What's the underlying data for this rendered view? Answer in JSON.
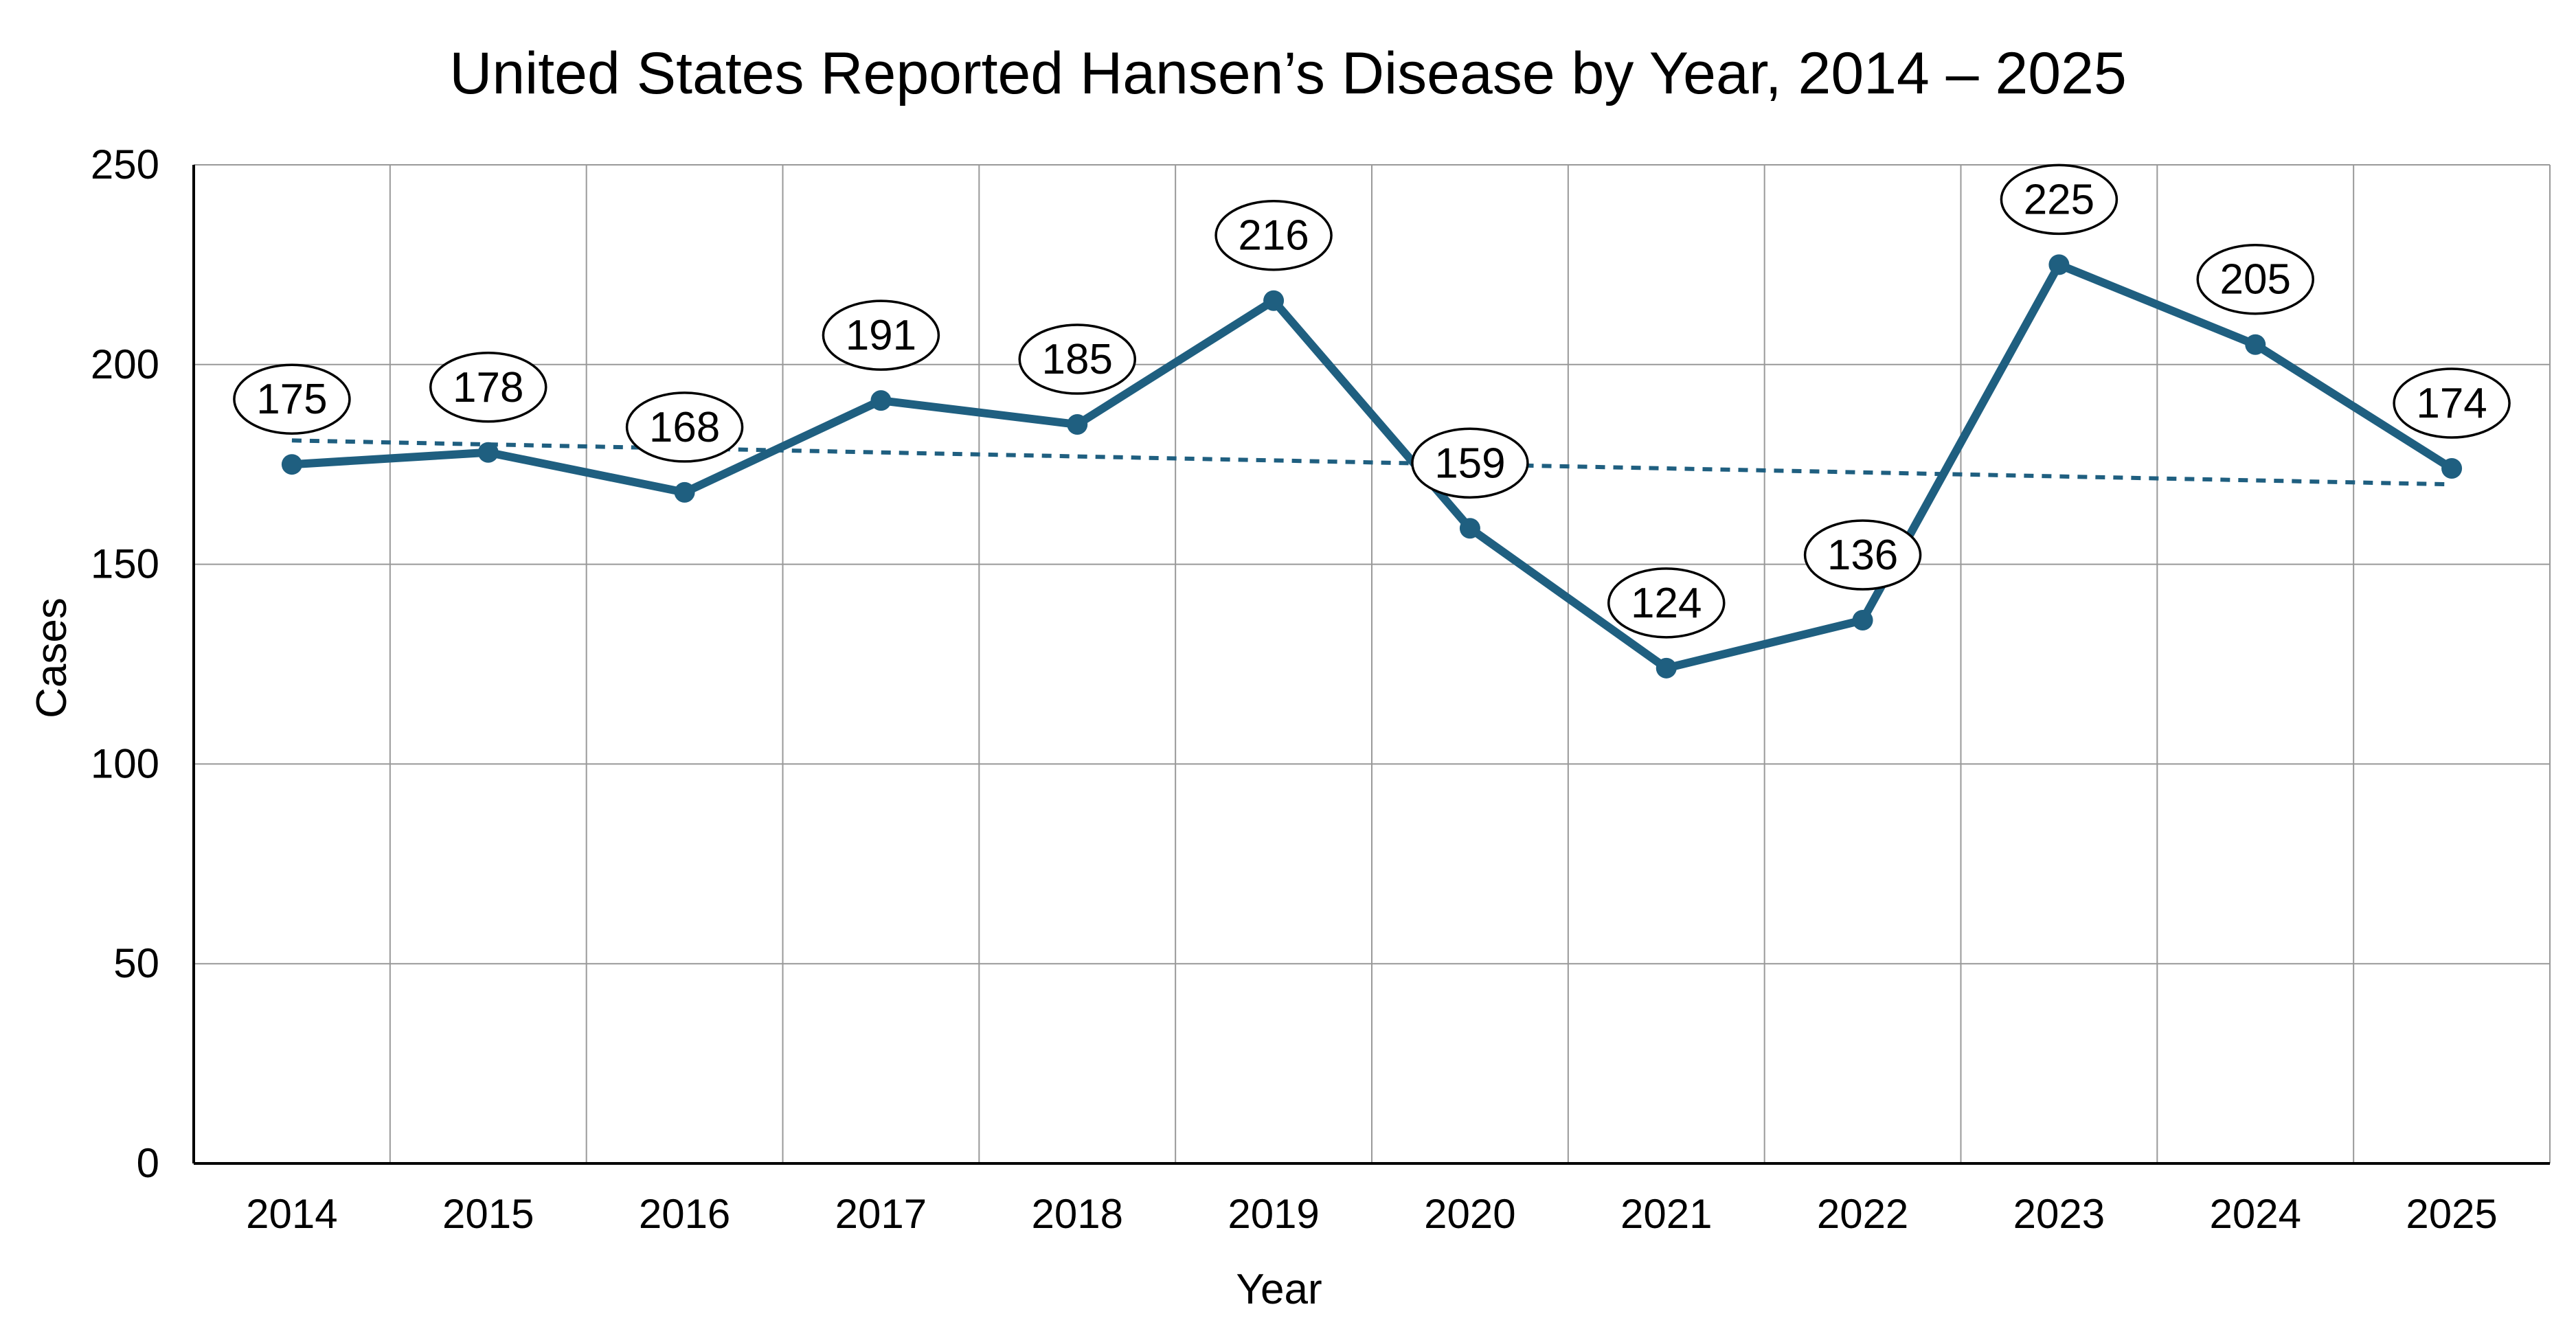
{
  "chart_data": {
    "type": "line",
    "title": "United States Reported Hansen’s Disease by Year, 2014 – 2025",
    "xlabel": "Year",
    "ylabel": "Cases",
    "x": [
      "2014",
      "2015",
      "2016",
      "2017",
      "2018",
      "2019",
      "2020",
      "2021",
      "2022",
      "2023",
      "2024",
      "2025"
    ],
    "ylim": [
      0,
      250
    ],
    "yticks": [
      0,
      50,
      100,
      150,
      200,
      250
    ],
    "grid": true,
    "series": [
      {
        "values": [
          175,
          178,
          168,
          191,
          185,
          216,
          159,
          124,
          136,
          225,
          205,
          174
        ],
        "data_labels": [
          "175",
          "178",
          "168",
          "191",
          "185",
          "216",
          "159",
          "124",
          "136",
          "225",
          "205",
          "174"
        ]
      }
    ],
    "trendline": {
      "style": "dotted",
      "start": 181,
      "end": 170
    },
    "colors": {
      "series": "#1f5f80",
      "trend": "#1f5f80"
    }
  }
}
